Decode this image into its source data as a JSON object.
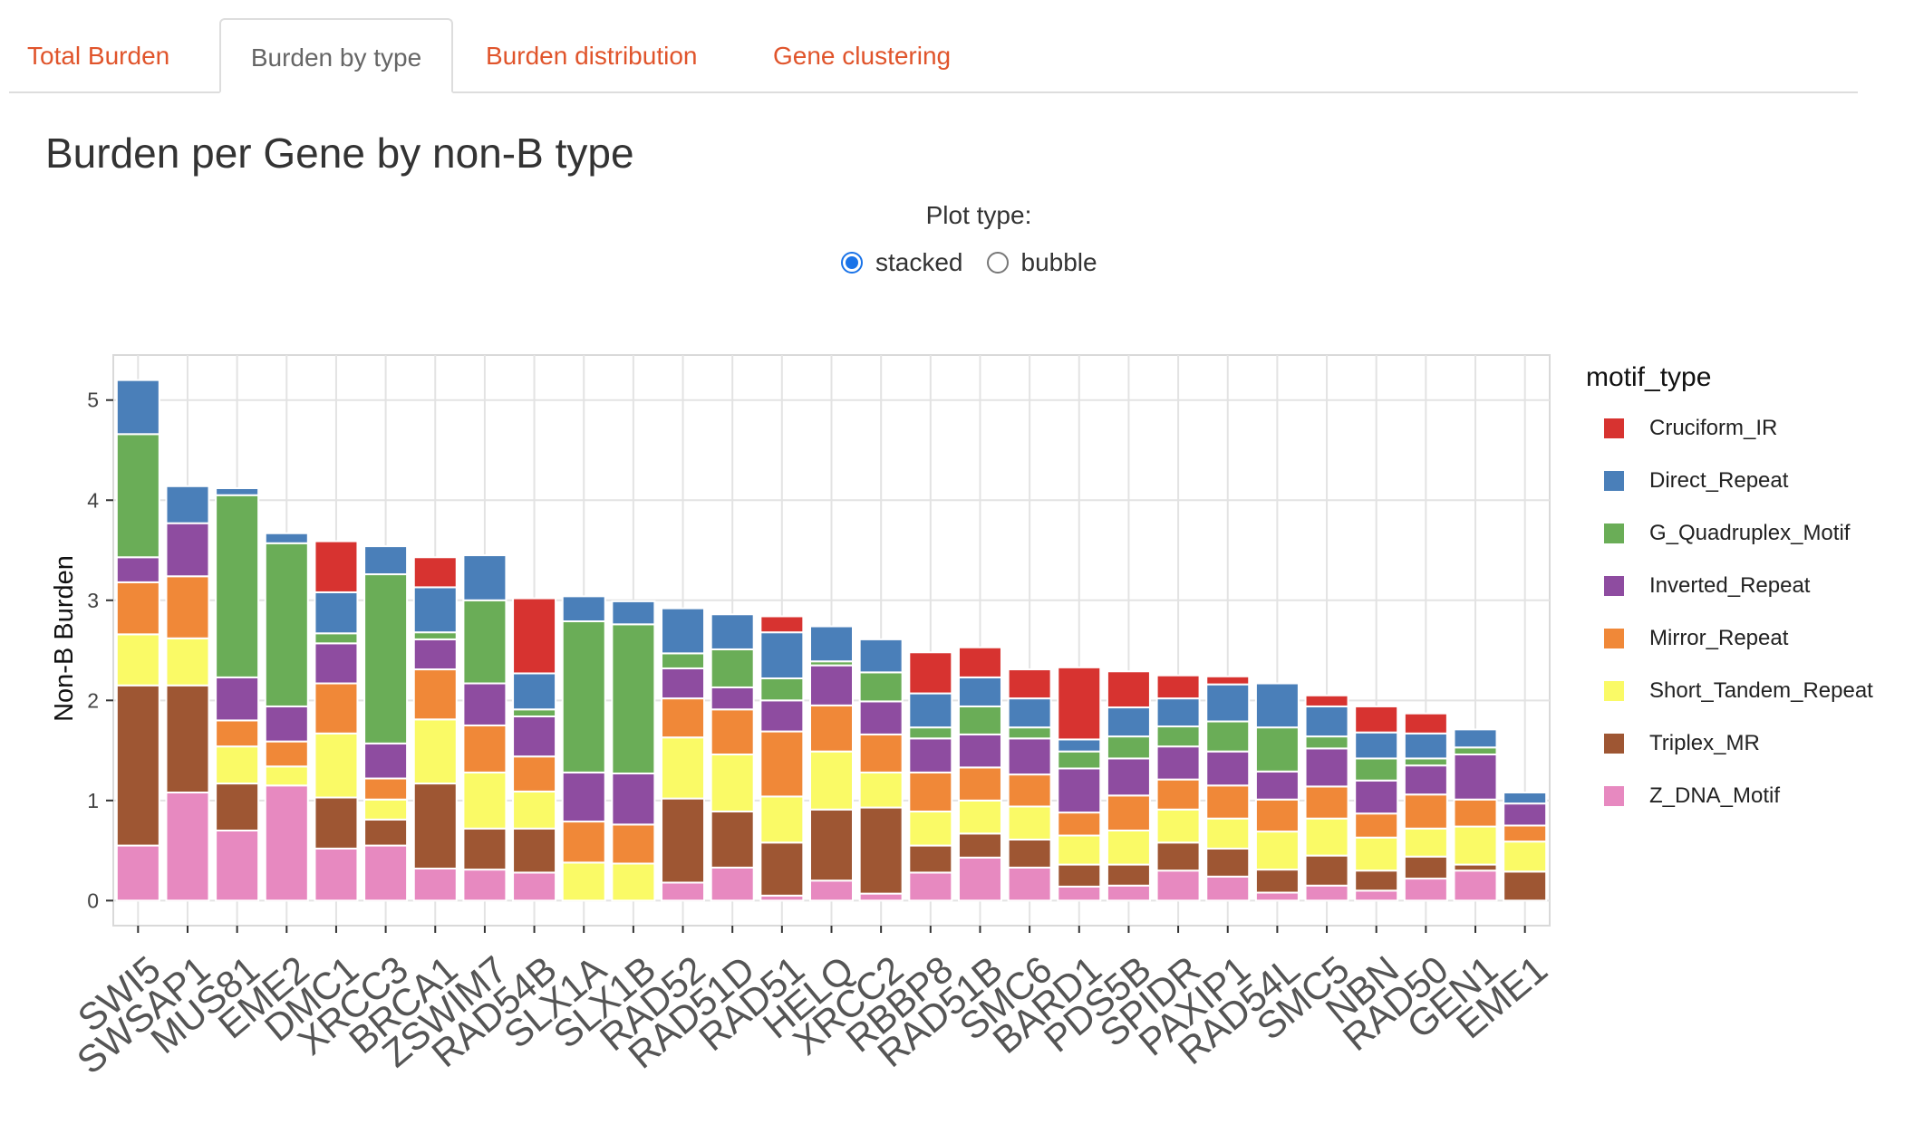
{
  "tabs": [
    {
      "label": "Total Burden",
      "active": false
    },
    {
      "label": "Burden by type",
      "active": true
    },
    {
      "label": "Burden distribution",
      "active": false
    },
    {
      "label": "Gene clustering",
      "active": false
    }
  ],
  "page_title": "Burden per Gene by non-B type",
  "plot_type": {
    "label": "Plot type:",
    "options": [
      {
        "label": "stacked",
        "checked": true
      },
      {
        "label": "bubble",
        "checked": false
      }
    ]
  },
  "colors": {
    "Cruciform_IR": "#d73330",
    "Direct_Repeat": "#4a7fb9",
    "G_Quadruplex_Motif": "#6aad57",
    "Inverted_Repeat": "#8e4ca0",
    "Mirror_Repeat": "#f08838",
    "Short_Tandem_Repeat": "#fafa66",
    "Triplex_MR": "#9e5633",
    "Z_DNA_Motif": "#e789c0"
  },
  "chart_data": {
    "type": "bar",
    "stacked": true,
    "title": "",
    "xlabel": "",
    "ylabel": "Non-B Burden",
    "ylim": [
      -0.25,
      5.45
    ],
    "yticks": [
      0,
      1,
      2,
      3,
      4,
      5
    ],
    "grid": true,
    "legend_title": "motif_type",
    "legend_position": "right",
    "categories": [
      "SWI5",
      "SWSAP1",
      "MUS81",
      "EME2",
      "DMC1",
      "XRCC3",
      "BRCA1",
      "ZSWIM7",
      "RAD54B",
      "SLX1A",
      "SLX1B",
      "RAD52",
      "RAD51D",
      "RAD51",
      "HELQ",
      "XRCC2",
      "RBBP8",
      "RAD51B",
      "SMC6",
      "BARD1",
      "PDS5B",
      "SPIDR",
      "PAXIP1",
      "RAD54L",
      "SMC5",
      "NBN",
      "RAD50",
      "GEN1",
      "EME1"
    ],
    "series": [
      {
        "name": "Z_DNA_Motif",
        "values": [
          0.55,
          1.08,
          0.7,
          1.15,
          0.52,
          0.55,
          0.32,
          0.31,
          0.28,
          0,
          0,
          0.18,
          0.33,
          0.05,
          0.2,
          0.07,
          0.28,
          0.43,
          0.33,
          0.14,
          0.15,
          0.3,
          0.24,
          0.08,
          0.15,
          0.1,
          0.22,
          0.3,
          0
        ]
      },
      {
        "name": "Triplex_MR",
        "values": [
          1.6,
          1.07,
          0.47,
          0,
          0.51,
          0.26,
          0.85,
          0.41,
          0.44,
          0,
          0,
          0.84,
          0.56,
          0.53,
          0.71,
          0.86,
          0.27,
          0.24,
          0.28,
          0.22,
          0.21,
          0.28,
          0.28,
          0.23,
          0.3,
          0.2,
          0.22,
          0.06,
          0.29
        ]
      },
      {
        "name": "Short_Tandem_Repeat",
        "values": [
          0.51,
          0.47,
          0.37,
          0.19,
          0.64,
          0.2,
          0.64,
          0.56,
          0.37,
          0.38,
          0.37,
          0.61,
          0.57,
          0.46,
          0.58,
          0.35,
          0.34,
          0.33,
          0.33,
          0.29,
          0.34,
          0.33,
          0.3,
          0.38,
          0.37,
          0.33,
          0.28,
          0.38,
          0.3
        ]
      },
      {
        "name": "Mirror_Repeat",
        "values": [
          0.52,
          0.62,
          0.26,
          0.25,
          0.5,
          0.21,
          0.5,
          0.47,
          0.35,
          0.41,
          0.39,
          0.39,
          0.45,
          0.65,
          0.46,
          0.38,
          0.39,
          0.33,
          0.32,
          0.23,
          0.35,
          0.3,
          0.33,
          0.32,
          0.32,
          0.24,
          0.34,
          0.27,
          0.16
        ]
      },
      {
        "name": "Inverted_Repeat",
        "values": [
          0.25,
          0.53,
          0.43,
          0.35,
          0.4,
          0.35,
          0.3,
          0.42,
          0.4,
          0.49,
          0.51,
          0.3,
          0.22,
          0.31,
          0.4,
          0.33,
          0.34,
          0.33,
          0.36,
          0.44,
          0.37,
          0.33,
          0.34,
          0.28,
          0.38,
          0.33,
          0.29,
          0.45,
          0.22
        ]
      },
      {
        "name": "G_Quadruplex_Motif",
        "values": [
          1.23,
          0,
          1.82,
          1.63,
          0.1,
          1.69,
          0.07,
          0.83,
          0.07,
          1.51,
          1.49,
          0.15,
          0.38,
          0.22,
          0.04,
          0.29,
          0.11,
          0.28,
          0.11,
          0.17,
          0.22,
          0.2,
          0.3,
          0.44,
          0.12,
          0.22,
          0.07,
          0.07,
          0
        ]
      },
      {
        "name": "Direct_Repeat",
        "values": [
          0.54,
          0.37,
          0.07,
          0.1,
          0.41,
          0.28,
          0.45,
          0.45,
          0.36,
          0.25,
          0.23,
          0.45,
          0.35,
          0.46,
          0.35,
          0.33,
          0.34,
          0.29,
          0.29,
          0.12,
          0.29,
          0.28,
          0.37,
          0.44,
          0.3,
          0.26,
          0.25,
          0.18,
          0.11
        ]
      },
      {
        "name": "Cruciform_IR",
        "values": [
          0,
          0,
          0,
          0,
          0.51,
          0,
          0.3,
          0,
          0.75,
          0,
          0,
          0,
          0,
          0.16,
          0,
          0,
          0.41,
          0.3,
          0.29,
          0.72,
          0.36,
          0.23,
          0.08,
          0,
          0.11,
          0.26,
          0.2,
          0,
          0
        ]
      }
    ]
  }
}
